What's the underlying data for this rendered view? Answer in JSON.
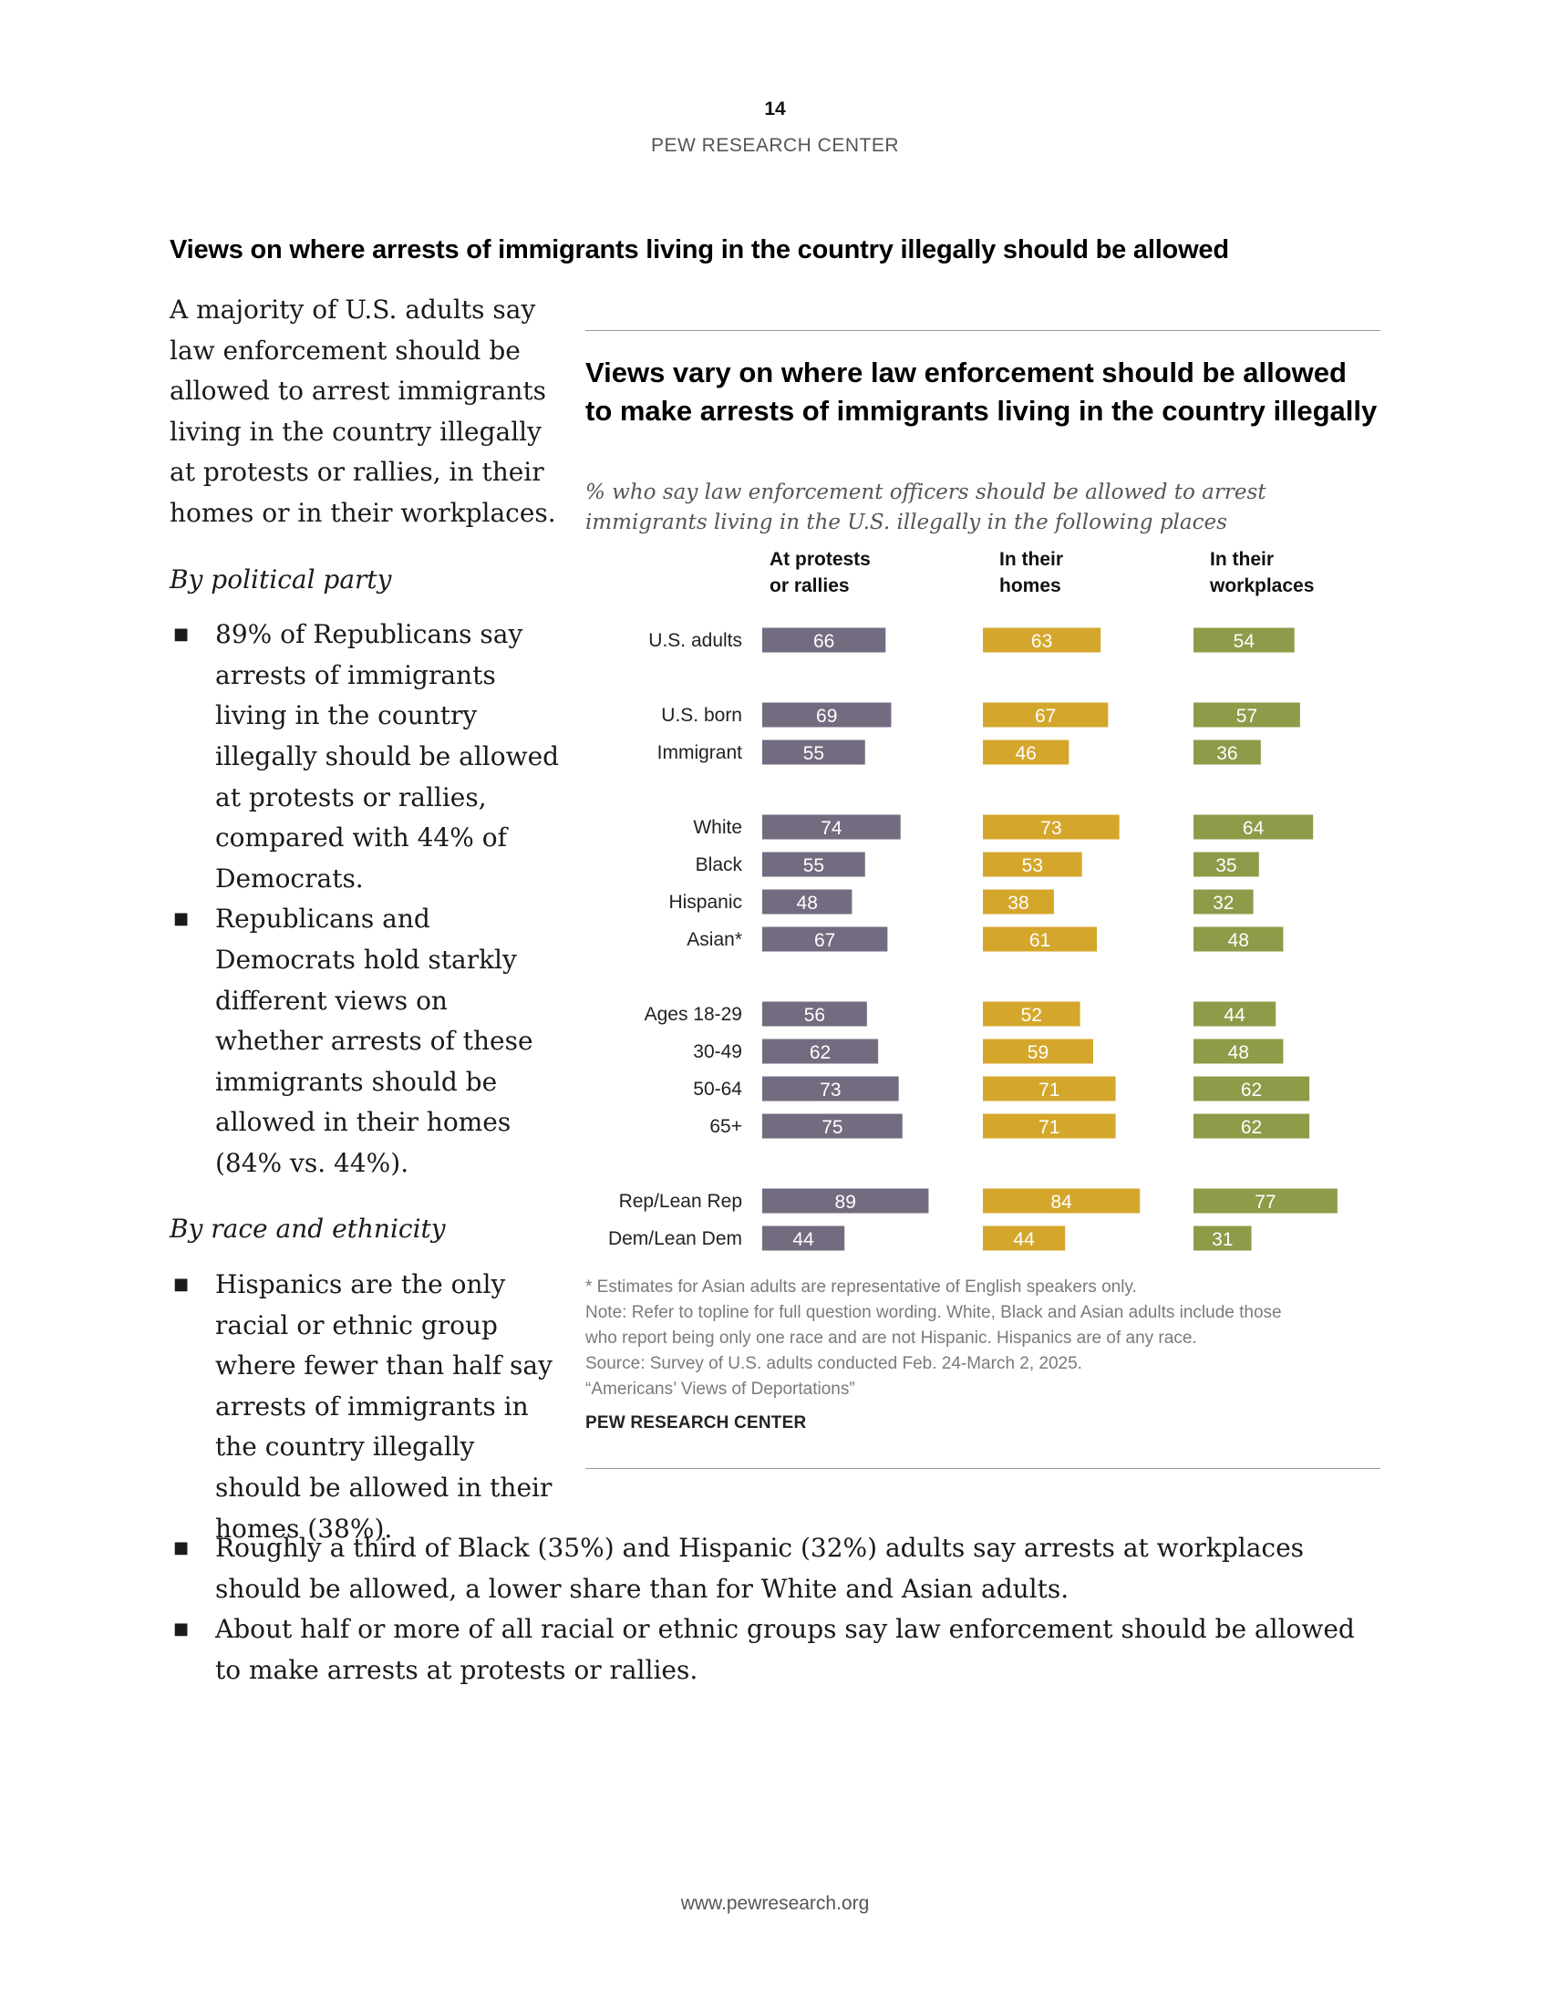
{
  "page": {
    "number": "14",
    "org": "PEW RESEARCH CENTER",
    "footer_url": "www.pewresearch.org"
  },
  "section_heading": "Views on where arrests of immigrants living in the country illegally should be allowed",
  "left_text": {
    "intro": "A majority of U.S. adults say law enforcement should be allowed to arrest immigrants living in the country illegally at protests or rallies, in their homes or in their workplaces.",
    "party_heading": "By political party",
    "party_bullets": [
      "89% of Republicans say arrests of immigrants living in the country illegally should be allowed at protests or rallies, compared with 44% of Democrats.",
      "Republicans and Democrats hold starkly different views on whether arrests of these immigrants should be allowed in their homes (84% vs. 44%)."
    ],
    "race_heading": "By race and ethnicity",
    "race_bullet_1": "Hispanics are the only racial or ethnic group where fewer than half say arrests of immigrants in the country illegally should be allowed in their homes (38%).",
    "bottom_bullets": [
      "Roughly a third of Black (35%) and Hispanic (32%) adults say arrests at workplaces should be allowed, a lower share than for White and Asian adults.",
      "About half or more of all racial or ethnic groups say law enforcement should be allowed to make arrests at protests or rallies."
    ]
  },
  "chart_data": {
    "type": "bar",
    "title": "Views vary on where law enforcement should be allowed to make arrests of immigrants living in the country illegally",
    "subtitle": "% who say law enforcement officers should be allowed to arrest immigrants living in the U.S. illegally in the following places",
    "categories": [
      "U.S. adults",
      "U.S. born",
      "Immigrant",
      "White",
      "Black",
      "Hispanic",
      "Asian*",
      "Ages 18-29",
      "30-49",
      "50-64",
      "65+",
      "Rep/Lean Rep",
      "Dem/Lean Dem"
    ],
    "groups": [
      [
        0
      ],
      [
        1,
        2
      ],
      [
        3,
        4,
        5,
        6
      ],
      [
        7,
        8,
        9,
        10
      ],
      [
        11,
        12
      ]
    ],
    "series": [
      {
        "name": "At protests or rallies",
        "header_lines": [
          "At protests",
          "or rallies"
        ],
        "color": "#736b80",
        "values": [
          66,
          69,
          55,
          74,
          55,
          48,
          67,
          56,
          62,
          73,
          75,
          89,
          44
        ]
      },
      {
        "name": "In their homes",
        "header_lines": [
          "In their",
          "homes"
        ],
        "color": "#d4a72c",
        "values": [
          63,
          67,
          46,
          73,
          53,
          38,
          61,
          52,
          59,
          71,
          71,
          84,
          44
        ]
      },
      {
        "name": "In their workplaces",
        "header_lines": [
          "In their",
          "workplaces"
        ],
        "color": "#8c9c48",
        "values": [
          54,
          57,
          36,
          64,
          35,
          32,
          48,
          44,
          48,
          62,
          62,
          77,
          31
        ]
      }
    ],
    "notes": [
      "* Estimates for Asian adults are representative of English speakers only.",
      "Note: Refer to topline for full question wording. White, Black and Asian adults include those",
      "who report being only one race and are not Hispanic. Hispanics are of any race.",
      "Source: Survey of U.S. adults conducted Feb. 24-March 2, 2025.",
      "“Americans’ Views of Deportations”"
    ],
    "source_org": "PEW RESEARCH CENTER"
  }
}
